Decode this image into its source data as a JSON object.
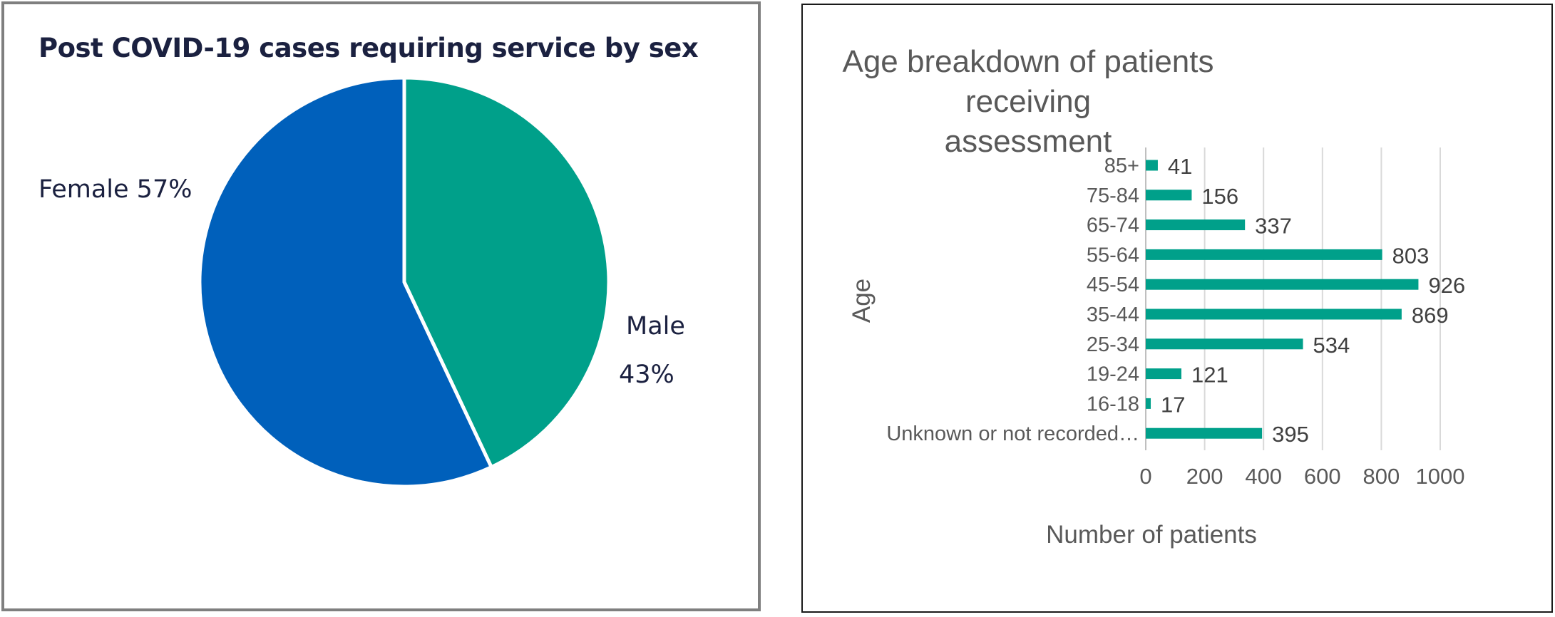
{
  "chart_data": [
    {
      "type": "pie",
      "title": "Post COVID-19 cases requiring service by sex",
      "slices": [
        {
          "label": "Male",
          "value": 43,
          "label_text": "Male",
          "pct_text": "43%",
          "color": "#00a08a"
        },
        {
          "label": "Female",
          "value": 57,
          "label_text": "Female 57%",
          "color": "#0060bb"
        }
      ],
      "legend": "none"
    },
    {
      "type": "bar",
      "orientation": "horizontal",
      "title": "Age breakdown of patients receiving assessment",
      "title_lines": [
        "Age breakdown of patients receiving",
        "assessment"
      ],
      "xlabel": "Number of patients",
      "ylabel": "Age",
      "categories": [
        "85+",
        "75-84",
        "65-74",
        "55-64",
        "45-54",
        "35-44",
        "25-34",
        "19-24",
        "16-18",
        "Unknown or not recorded…"
      ],
      "values": [
        41,
        156,
        337,
        803,
        926,
        869,
        534,
        121,
        17,
        395
      ],
      "xlim": [
        0,
        1000
      ],
      "xticks": [
        0,
        200,
        400,
        600,
        800,
        1000
      ],
      "grid": "vertical",
      "bar_color": "#00a08a",
      "data_labels": true,
      "legend": "none"
    }
  ]
}
